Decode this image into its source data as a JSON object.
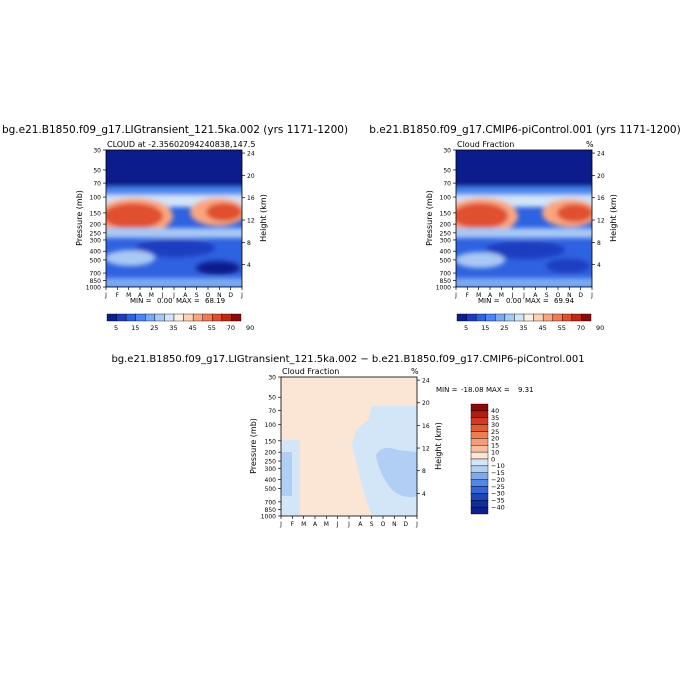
{
  "chart_data": [
    {
      "type": "heatmap",
      "main_title": "bg.e21.B1850.f09_g17.LIGtransient_121.5ka.002 (yrs 1171-1200)",
      "subtitle": "CLOUD at -2.35602094240838,147.5",
      "ylabel_left": "Pressure (mb)",
      "ylabel_right": "Height (km)",
      "pressure_ticks": [
        "30",
        "50",
        "70",
        "100",
        "150",
        "200",
        "250",
        "300",
        "400",
        "500",
        "700",
        "850",
        "1000"
      ],
      "height_ticks": [
        "24",
        "20",
        "16",
        "12",
        "8",
        "4"
      ],
      "month_ticks": [
        "J",
        "F",
        "M",
        "A",
        "M",
        "J",
        "J",
        "A",
        "S",
        "O",
        "N",
        "D",
        "J"
      ],
      "min_label": "MIN =",
      "min_value": "0.00",
      "max_label": "MAX =",
      "max_value": "68.19",
      "colorbar_labels": [
        "5",
        "15",
        "25",
        "35",
        "45",
        "55",
        "70",
        "90"
      ]
    },
    {
      "type": "heatmap",
      "main_title": "b.e21.B1850.f09_g17.CMIP6-piControl.001 (yrs 1171-1200)",
      "subtitle": "Cloud Fraction",
      "subtitle_right": "%",
      "ylabel_left": "Pressure (mb)",
      "ylabel_right": "Height (km)",
      "pressure_ticks": [
        "30",
        "50",
        "70",
        "100",
        "150",
        "200",
        "250",
        "300",
        "400",
        "500",
        "700",
        "850",
        "1000"
      ],
      "height_ticks": [
        "24",
        "20",
        "16",
        "12",
        "8",
        "4"
      ],
      "month_ticks": [
        "J",
        "F",
        "M",
        "A",
        "M",
        "J",
        "J",
        "A",
        "S",
        "O",
        "N",
        "D",
        "J"
      ],
      "min_label": "MIN =",
      "min_value": "0.00",
      "max_label": "MAX =",
      "max_value": "69.94",
      "colorbar_labels": [
        "5",
        "15",
        "25",
        "35",
        "45",
        "55",
        "70",
        "90"
      ]
    },
    {
      "type": "heatmap",
      "main_title": "bg.e21.B1850.f09_g17.LIGtransient_121.5ka.002 − b.e21.B1850.f09_g17.CMIP6-piControl.001",
      "subtitle": "Cloud Fraction",
      "subtitle_right": "%",
      "ylabel_left": "Pressure (mb)",
      "ylabel_right": "Height (km)",
      "pressure_ticks": [
        "30",
        "50",
        "70",
        "100",
        "150",
        "200",
        "250",
        "300",
        "400",
        "500",
        "700",
        "850",
        "1000"
      ],
      "height_ticks": [
        "24",
        "20",
        "16",
        "12",
        "8",
        "4"
      ],
      "month_ticks": [
        "J",
        "F",
        "M",
        "A",
        "M",
        "J",
        "J",
        "A",
        "S",
        "O",
        "N",
        "D",
        "J"
      ],
      "min_label": "MIN =",
      "min_value": "-18.08",
      "max_label": "MAX =",
      "max_value": "9.31",
      "colorbar_labels": [
        "40",
        "35",
        "30",
        "25",
        "20",
        "15",
        "10",
        "0",
        "−10",
        "−15",
        "−20",
        "−25",
        "−30",
        "−35",
        "−40"
      ]
    }
  ],
  "colors": {
    "cf_scale": [
      "#0d1f8c",
      "#1f3cc0",
      "#2f62e0",
      "#4a86f0",
      "#7aaaf2",
      "#a8c8f5",
      "#d2e4f8",
      "#f8efe6",
      "#fbd2b8",
      "#f8a680",
      "#f07a52",
      "#e0502e",
      "#bf2a14",
      "#8b0a05"
    ],
    "diff_scale": [
      "#8b0a05",
      "#b11d0e",
      "#d03a1e",
      "#e35c30",
      "#f07d52",
      "#f59c77",
      "#f8bda0",
      "#fbe6d6",
      "#d3e6f8",
      "#b1cff4",
      "#7fa8ee",
      "#5588e6",
      "#3366d8",
      "#1f46b8",
      "#122f99",
      "#0d1f8c"
    ]
  }
}
